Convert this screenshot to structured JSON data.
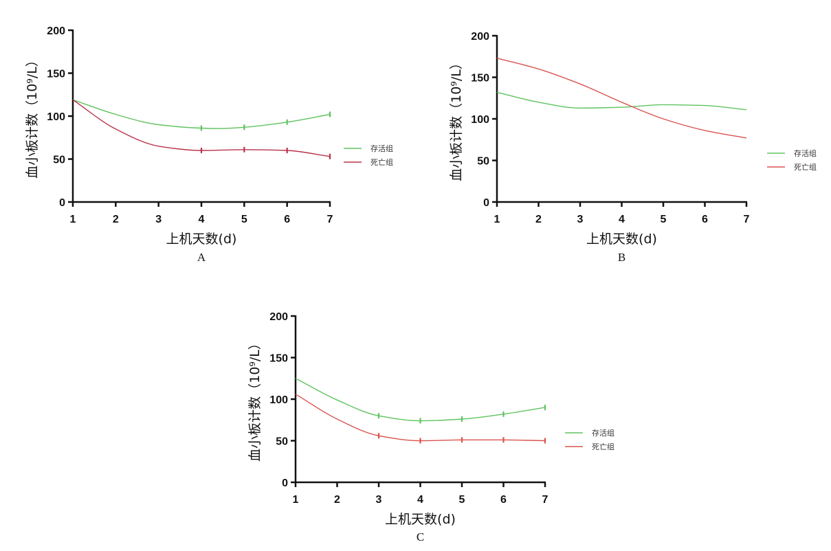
{
  "chart_data": [
    {
      "type": "line",
      "panel": "A",
      "xlabel": "上机天数(d)",
      "ylabel": "血小板计数（10⁹/L）",
      "xlim": [
        1,
        7
      ],
      "ylim": [
        0,
        200
      ],
      "xticks": [
        1,
        2,
        3,
        4,
        5,
        6,
        7
      ],
      "yticks": [
        0,
        50,
        100,
        150,
        200
      ],
      "legend_position": "right",
      "series": [
        {
          "name": "存活组",
          "color": "#5ec35e",
          "x": [
            1,
            2,
            3,
            4,
            4.4,
            5,
            6,
            7
          ],
          "values": [
            119,
            102,
            90,
            86,
            85.5,
            87,
            93,
            102
          ],
          "error_x": [
            4,
            5,
            6,
            7
          ]
        },
        {
          "name": "死亡组",
          "color": "#b8324a",
          "x": [
            1,
            2,
            3,
            4,
            5,
            6,
            7
          ],
          "values": [
            119,
            85,
            65,
            60,
            61,
            60,
            53
          ],
          "error_x": [
            4,
            5,
            6,
            7
          ]
        }
      ]
    },
    {
      "type": "line",
      "panel": "B",
      "xlabel": "上机天数(d)",
      "ylabel": "血小板计数（10⁹/L）",
      "xlim": [
        1,
        7
      ],
      "ylim": [
        0,
        200
      ],
      "xticks": [
        1,
        2,
        3,
        4,
        5,
        6,
        7
      ],
      "yticks": [
        0,
        50,
        100,
        150,
        200
      ],
      "legend_position": "right",
      "series": [
        {
          "name": "存活组",
          "color": "#5ec35e",
          "x": [
            1,
            2,
            3,
            4,
            5,
            6,
            7
          ],
          "values": [
            132,
            120,
            113,
            114,
            117,
            116,
            111
          ],
          "error_x": []
        },
        {
          "name": "死亡组",
          "color": "#d9534f",
          "x": [
            1,
            2,
            3,
            4,
            5,
            6,
            7
          ],
          "values": [
            173,
            160,
            142,
            120,
            100,
            86,
            77
          ],
          "error_x": []
        }
      ]
    },
    {
      "type": "line",
      "panel": "C",
      "xlabel": "上机天数(d)",
      "ylabel": "血小板计数（10⁹/L）",
      "xlim": [
        1,
        7
      ],
      "ylim": [
        0,
        200
      ],
      "xticks": [
        1,
        2,
        3,
        4,
        5,
        6,
        7
      ],
      "yticks": [
        0,
        50,
        100,
        150,
        200
      ],
      "legend_position": "right",
      "series": [
        {
          "name": "存活组",
          "color": "#5ec35e",
          "x": [
            1,
            2,
            3,
            4,
            5,
            6,
            7
          ],
          "values": [
            125,
            99,
            80,
            74,
            76,
            82,
            90
          ],
          "error_x": [
            3,
            4,
            5,
            6,
            7
          ]
        },
        {
          "name": "死亡组",
          "color": "#d9534f",
          "x": [
            1,
            2,
            3,
            4,
            5,
            6,
            7
          ],
          "values": [
            106,
            76,
            56,
            50,
            51,
            51,
            50
          ],
          "error_x": [
            3,
            4,
            5,
            6,
            7
          ]
        }
      ]
    }
  ]
}
